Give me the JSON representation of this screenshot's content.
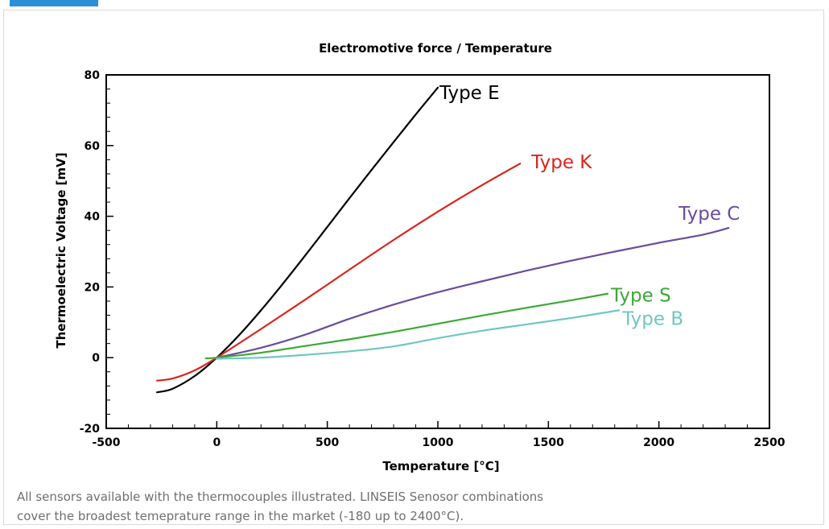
{
  "top_accent_color": "#2b8ed6",
  "caption": {
    "line1": "All sensors available with the thermocouples illustrated. LINSEIS Senosor combinations",
    "line2": "cover the broadest temeprature range in the market (-180 up to 2400°C)."
  },
  "chart_data": {
    "type": "line",
    "title": "Electromotive force / Temperature",
    "xlabel": "Temperature [°C]",
    "ylabel": "Thermoelectric Voltage [mV]",
    "xlim": [
      -500,
      2500
    ],
    "ylim": [
      -20,
      80
    ],
    "xticks": [
      -500,
      0,
      500,
      1000,
      1500,
      2000,
      2500
    ],
    "yticks": [
      -20,
      0,
      20,
      40,
      60,
      80
    ],
    "grid": false,
    "legend": "inline labels at line ends",
    "series": [
      {
        "name": "Type E",
        "color": "#000000",
        "x": [
          -270,
          -200,
          -100,
          0,
          100,
          200,
          300,
          400,
          500,
          600,
          700,
          800,
          900,
          1000
        ],
        "y": [
          -9.8,
          -8.8,
          -5.2,
          0.0,
          6.3,
          13.4,
          21.0,
          28.9,
          37.0,
          45.1,
          53.1,
          61.0,
          68.8,
          76.4
        ]
      },
      {
        "name": "Type K",
        "color": "#d9251c",
        "x": [
          -270,
          -200,
          -100,
          0,
          200,
          400,
          600,
          800,
          1000,
          1200,
          1372
        ],
        "y": [
          -6.5,
          -5.9,
          -3.6,
          0.0,
          8.1,
          16.4,
          24.9,
          33.3,
          41.3,
          48.8,
          54.9
        ]
      },
      {
        "name": "Type C",
        "color": "#6a4c9c",
        "x": [
          0,
          200,
          400,
          600,
          800,
          1000,
          1200,
          1400,
          1600,
          1800,
          2000,
          2200,
          2315
        ],
        "y": [
          0.0,
          2.8,
          6.5,
          11.0,
          15.0,
          18.5,
          21.6,
          24.6,
          27.4,
          30.0,
          32.5,
          34.8,
          36.7
        ]
      },
      {
        "name": "Type S",
        "color": "#3aa935",
        "x": [
          -50,
          0,
          200,
          400,
          600,
          800,
          1000,
          1200,
          1400,
          1600,
          1768
        ],
        "y": [
          -0.2,
          0.0,
          1.4,
          3.3,
          5.2,
          7.3,
          9.6,
          11.9,
          14.1,
          16.2,
          18.1
        ]
      },
      {
        "name": "Type B",
        "color": "#6fc7c0",
        "x": [
          0,
          200,
          400,
          600,
          800,
          1000,
          1200,
          1400,
          1600,
          1820
        ],
        "y": [
          -0.3,
          0.0,
          0.8,
          1.8,
          3.2,
          5.5,
          7.6,
          9.4,
          11.2,
          13.4
        ]
      }
    ]
  }
}
